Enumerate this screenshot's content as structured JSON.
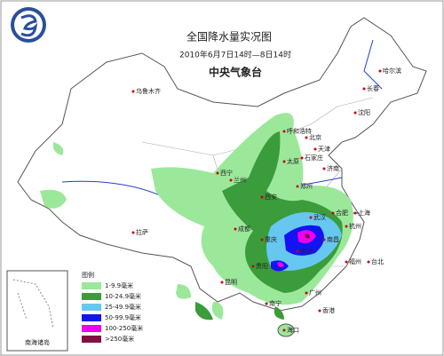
{
  "header": {
    "title": "全国降水量实况图",
    "subtitle": "2010年6月7日14时—8日14时",
    "agency": "中央气象台"
  },
  "legend": {
    "title": "图例",
    "items": [
      {
        "label": "1-9.9毫米",
        "color": "#9be89b"
      },
      {
        "label": "10-24.9毫米",
        "color": "#3a9c3a"
      },
      {
        "label": "25-49.9毫米",
        "color": "#66c8f0"
      },
      {
        "label": "50-99.9毫米",
        "color": "#1414f0"
      },
      {
        "label": "100-250毫米",
        "color": "#f000f0"
      },
      {
        "label": ">250毫米",
        "color": "#80103f"
      }
    ]
  },
  "cities": [
    "乌鲁木齐",
    "哈尔滨",
    "长春",
    "沈阳",
    "呼和浩特",
    "北京",
    "天津",
    "石家庄",
    "太原",
    "济南",
    "西宁",
    "兰州",
    "西安",
    "郑州",
    "合肥",
    "上海",
    "杭州",
    "武汉",
    "长沙",
    "南昌",
    "福州",
    "台北",
    "成都",
    "重庆",
    "贵阳",
    "昆明",
    "南宁",
    "广州",
    "香港",
    "海口",
    "拉萨"
  ],
  "inset": {
    "label": "南海诸岛"
  }
}
